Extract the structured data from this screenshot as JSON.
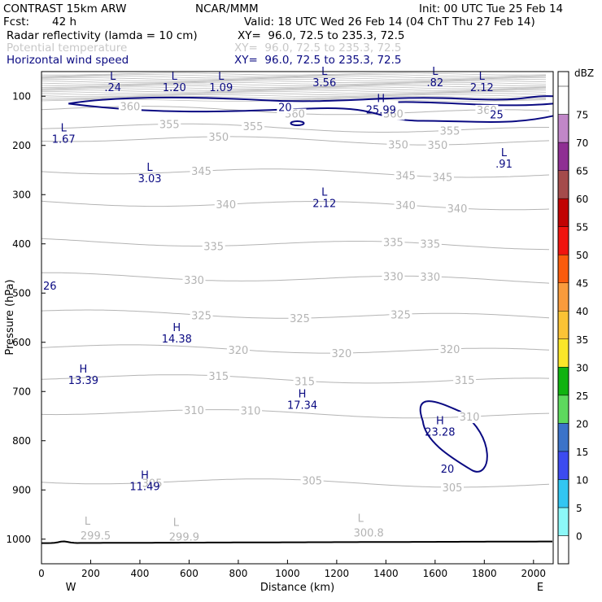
{
  "header": {
    "model": "CONTRAST 15km ARW",
    "org": "NCAR/MMM",
    "init": "Init: 00 UTC Tue 25 Feb 14",
    "fcst_label": "Fcst:",
    "fcst_value": "42 h",
    "valid": "Valid: 18 UTC Wed 26 Feb 14 (04 ChT Thu 27 Feb 14)",
    "fields": [
      {
        "name": "Radar reflectivity (lamda = 10 cm)",
        "xy": "XY=  96.0, 72.5 to 235.3, 72.5",
        "color": "#000000"
      },
      {
        "name": "Potential temperature",
        "xy": "XY=  96.0, 72.5 to 235.3, 72.5",
        "color": "#c8c8c8"
      },
      {
        "name": "Horizontal wind speed",
        "xy": "XY=  96.0, 72.5 to 235.3, 72.5",
        "color": "#0a0a82"
      }
    ]
  },
  "chart_data": {
    "type": "cross-section contour",
    "xlabel": "Distance (km)",
    "ylabel": "Pressure (hPa)",
    "xlim": [
      0,
      2080
    ],
    "ylim": [
      1050,
      50
    ],
    "x_ticks": [
      0,
      200,
      400,
      600,
      800,
      1000,
      1200,
      1400,
      1600,
      1800,
      2000
    ],
    "y_ticks": [
      100,
      200,
      300,
      400,
      500,
      600,
      700,
      800,
      900,
      1000
    ],
    "end_labels": {
      "left": "W",
      "right": "E"
    },
    "theta_contours": [
      {
        "value": "305",
        "p": 880,
        "label_x": [
          450,
          1100,
          1670
        ]
      },
      {
        "value": "310",
        "p": 740,
        "label_x": [
          620,
          850,
          1740
        ]
      },
      {
        "value": "315",
        "p": 670,
        "label_x": [
          720,
          1070,
          1720
        ]
      },
      {
        "value": "320",
        "p": 610,
        "label_x": [
          800,
          1220,
          1660
        ]
      },
      {
        "value": "325",
        "p": 540,
        "label_x": [
          650,
          1050,
          1460
        ]
      },
      {
        "value": "330",
        "p": 465,
        "label_x": [
          620,
          1430,
          1580
        ]
      },
      {
        "value": "335",
        "p": 395,
        "label_x": [
          700,
          1430,
          1580
        ]
      },
      {
        "value": "340",
        "p": 315,
        "label_x": [
          750,
          1480,
          1690
        ]
      },
      {
        "value": "345",
        "p": 250,
        "label_x": [
          650,
          1480,
          1630
        ]
      },
      {
        "value": "350",
        "p": 185,
        "label_x": [
          720,
          1450,
          1610
        ]
      },
      {
        "value": "355",
        "p": 160,
        "label_x": [
          520,
          860,
          1660
        ]
      },
      {
        "value": "360",
        "p": 125,
        "label_x": [
          360,
          1030,
          1430,
          1810
        ]
      }
    ],
    "theta_extrema": [
      {
        "type": "L",
        "value": "299.5",
        "x": 220,
        "p": 1000
      },
      {
        "type": "L",
        "value": "299.9",
        "x": 580,
        "p": 1003
      },
      {
        "type": "L",
        "value": "300.8",
        "x": 1330,
        "p": 995
      }
    ],
    "wind_contours": [
      {
        "value": "20",
        "label": "20",
        "label_x": [
          990,
          1650
        ],
        "label_p": [
          130,
          865
        ]
      },
      {
        "value": "25",
        "label": "25",
        "label_x": [
          1850
        ],
        "label_p": [
          145
        ]
      }
    ],
    "wind_extrema": [
      {
        "type": "L",
        "value": ".24",
        "x": 290,
        "p": 90
      },
      {
        "type": "L",
        "value": "1.20",
        "x": 540,
        "p": 90
      },
      {
        "type": "L",
        "value": "1.09",
        "x": 730,
        "p": 90
      },
      {
        "type": "L",
        "value": "3.56",
        "x": 1150,
        "p": 80
      },
      {
        "type": "L",
        "value": ".82",
        "x": 1600,
        "p": 80
      },
      {
        "type": "L",
        "value": "2.12",
        "x": 1790,
        "p": 90
      },
      {
        "type": "H",
        "value": "25.99",
        "x": 1380,
        "p": 135
      },
      {
        "type": "L",
        "value": "1.67",
        "x": 90,
        "p": 195
      },
      {
        "type": "L",
        "value": "3.03",
        "x": 440,
        "p": 275
      },
      {
        "type": "L",
        "value": "2.12",
        "x": 1150,
        "p": 325
      },
      {
        "type": "L",
        "value": ".91",
        "x": 1880,
        "p": 245
      },
      {
        "type": "H",
        "value": "14.38",
        "x": 550,
        "p": 600
      },
      {
        "type": "H",
        "value": "13.39",
        "x": 170,
        "p": 685
      },
      {
        "type": "H",
        "value": "17.34",
        "x": 1060,
        "p": 735
      },
      {
        "type": "H",
        "value": "23.28",
        "x": 1620,
        "p": 790
      },
      {
        "type": "H",
        "value": "11.49",
        "x": 420,
        "p": 900
      }
    ],
    "edge_label": {
      "value": "26",
      "p": 485
    }
  },
  "colorbar": {
    "unit": "dBZ",
    "levels": [
      "0",
      "5",
      "10",
      "15",
      "20",
      "25",
      "30",
      "35",
      "40",
      "45",
      "50",
      "55",
      "60",
      "65",
      "70",
      "75"
    ],
    "colors": [
      "#ffffff",
      "#8cf8f8",
      "#32c6f2",
      "#3c4bf0",
      "#3b73c9",
      "#5dd95d",
      "#10b310",
      "#fae629",
      "#fbc335",
      "#f99b3c",
      "#fa5b0c",
      "#f0140f",
      "#c10303",
      "#a44b4b",
      "#8f2f93",
      "#c187c8",
      "#ffffff"
    ]
  }
}
